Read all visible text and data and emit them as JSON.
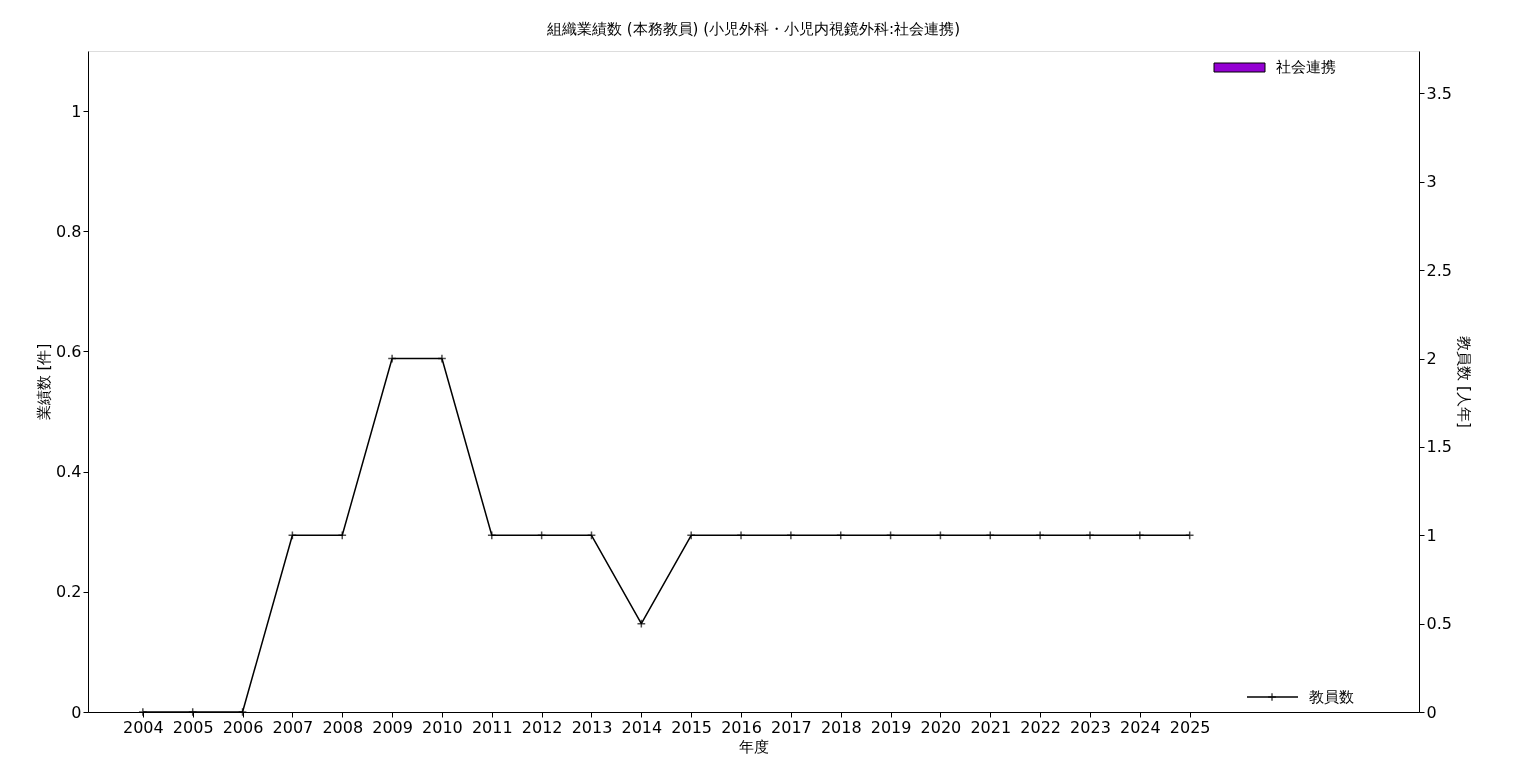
{
  "chart_data": {
    "type": "bar",
    "title": "組織業績数 (本務教員) (小児外科・小児内視鏡外科:社会連携)",
    "xlabel": "年度",
    "ylabel": "業績数 [件]",
    "y2label": "教員数 [人年]",
    "x": [
      2004,
      2005,
      2006,
      2007,
      2008,
      2009,
      2010,
      2011,
      2012,
      2013,
      2014,
      2015,
      2016,
      2017,
      2018,
      2019,
      2020,
      2021,
      2022,
      2023,
      2024,
      2025
    ],
    "series": [
      {
        "name": "社会連携",
        "color": "#9400d3",
        "values": [
          0,
          0,
          0,
          0,
          0,
          0,
          0,
          0,
          0,
          0,
          0,
          0,
          0,
          0,
          0,
          0,
          0,
          0,
          0,
          0,
          0,
          0
        ]
      },
      {
        "name": "教員数",
        "type": "line",
        "axis": "y2",
        "color": "#000000",
        "marker": "cross",
        "values": [
          0,
          0,
          0,
          1,
          1,
          2,
          2,
          1,
          1,
          1,
          0.5,
          1,
          1,
          1,
          1,
          1,
          1,
          1,
          1,
          1,
          1,
          1
        ]
      }
    ],
    "xlim": [
      2003,
      2029.5
    ],
    "xticks": [
      2004,
      2005,
      2006,
      2007,
      2008,
      2009,
      2010,
      2011,
      2012,
      2013,
      2014,
      2015,
      2016,
      2017,
      2018,
      2019,
      2020,
      2021,
      2022,
      2023,
      2024,
      2025
    ],
    "ylim": [
      0,
      1.1
    ],
    "yticks": [
      0,
      0.2,
      0.4,
      0.6,
      0.8,
      1
    ],
    "y2lim": [
      0,
      3.74
    ],
    "y2ticks": [
      0,
      0.5,
      1,
      1.5,
      2,
      2.5,
      3,
      3.5
    ],
    "grid": false,
    "legend": "right"
  }
}
